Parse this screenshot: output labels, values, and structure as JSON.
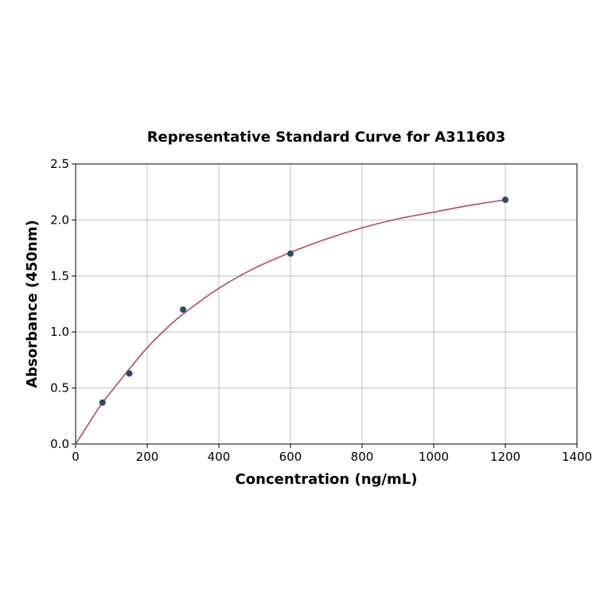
{
  "colors": {
    "curve": "#b5496a",
    "point_fill": "#2a4a6b",
    "grid": "#b0b0b0",
    "axis": "#000000",
    "background": "#ffffff"
  },
  "chart_data": {
    "type": "scatter",
    "title": "Representative Standard Curve for A311603",
    "xlabel": "Concentration (ng/mL)",
    "ylabel": "Absorbance (450nm)",
    "xlim": [
      0,
      1400
    ],
    "ylim": [
      0,
      2.5
    ],
    "xticks": [
      0,
      200,
      400,
      600,
      800,
      1000,
      1200,
      1400
    ],
    "yticks": [
      0.0,
      0.5,
      1.0,
      1.5,
      2.0,
      2.5
    ],
    "xtick_labels": [
      "0",
      "200",
      "400",
      "600",
      "800",
      "1000",
      "1200",
      "1400"
    ],
    "ytick_labels": [
      "0.0",
      "0.5",
      "1.0",
      "1.5",
      "2.0",
      "2.5"
    ],
    "grid": true,
    "series": [
      {
        "kind": "points",
        "x": [
          75,
          150,
          300,
          600,
          1200
        ],
        "y": [
          0.37,
          0.63,
          1.2,
          1.7,
          2.18
        ]
      },
      {
        "kind": "fit-curve",
        "x": [
          0,
          25,
          50,
          75,
          100,
          150,
          200,
          250,
          300,
          400,
          500,
          600,
          700,
          800,
          900,
          1000,
          1100,
          1200
        ],
        "y": [
          0.0,
          0.125,
          0.25,
          0.37,
          0.47,
          0.67,
          0.86,
          1.02,
          1.16,
          1.39,
          1.57,
          1.71,
          1.83,
          1.93,
          2.01,
          2.07,
          2.13,
          2.18
        ]
      }
    ]
  }
}
